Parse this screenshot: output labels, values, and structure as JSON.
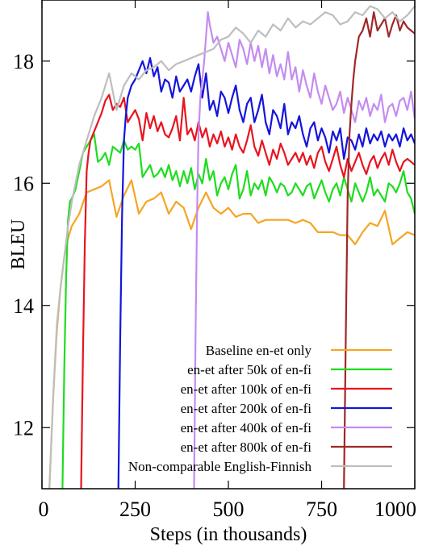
{
  "chart_data": {
    "type": "line",
    "xlabel": "Steps (in thousands)",
    "ylabel": "BLEU",
    "xlim": [
      0,
      1000
    ],
    "ylim": [
      11,
      19
    ],
    "xticks": [
      {
        "value": 0,
        "label": "0"
      },
      {
        "value": 250,
        "label": "250"
      },
      {
        "value": 500,
        "label": "500"
      },
      {
        "value": 750,
        "label": "750"
      },
      {
        "value": 1000,
        "label": "1000"
      }
    ],
    "yticks": [
      {
        "value": 12,
        "label": "12"
      },
      {
        "value": 14,
        "label": "14"
      },
      {
        "value": 16,
        "label": "16"
      },
      {
        "value": 18,
        "label": "18"
      }
    ],
    "legend_position": "bottom-right",
    "series": [
      {
        "name": "Baseline en-et only",
        "color": "#f5a623",
        "x": [
          20,
          30,
          40,
          50,
          60,
          70,
          80,
          100,
          120,
          140,
          160,
          180,
          200,
          220,
          240,
          260,
          280,
          300,
          320,
          340,
          360,
          380,
          400,
          420,
          440,
          460,
          480,
          500,
          520,
          540,
          560,
          580,
          600,
          620,
          640,
          660,
          680,
          700,
          720,
          740,
          760,
          780,
          800,
          820,
          840,
          860,
          880,
          900,
          920,
          940,
          960,
          980,
          1000
        ],
        "y": [
          11.0,
          12.5,
          13.6,
          14.3,
          14.8,
          15.1,
          15.3,
          15.5,
          15.85,
          15.9,
          15.95,
          16.05,
          15.45,
          15.8,
          16.05,
          15.5,
          15.7,
          15.75,
          15.85,
          15.5,
          15.7,
          15.6,
          15.25,
          15.6,
          15.85,
          15.6,
          15.5,
          15.6,
          15.45,
          15.5,
          15.5,
          15.35,
          15.4,
          15.4,
          15.4,
          15.4,
          15.35,
          15.4,
          15.35,
          15.2,
          15.2,
          15.2,
          15.15,
          15.15,
          15.0,
          15.2,
          15.35,
          15.3,
          15.55,
          15.0,
          15.1,
          15.2,
          15.15
        ]
      },
      {
        "name": "en-et after 50k of en-fi",
        "color": "#1fdc1f",
        "x": [
          55,
          60,
          65,
          70,
          75,
          80,
          90,
          100,
          110,
          120,
          130,
          140,
          150,
          160,
          170,
          180,
          190,
          200,
          210,
          220,
          230,
          240,
          250,
          260,
          270,
          280,
          290,
          300,
          310,
          320,
          330,
          340,
          350,
          360,
          370,
          380,
          390,
          400,
          410,
          420,
          430,
          440,
          450,
          460,
          470,
          480,
          490,
          500,
          510,
          520,
          530,
          540,
          550,
          560,
          570,
          580,
          590,
          600,
          610,
          620,
          630,
          640,
          650,
          660,
          670,
          680,
          690,
          700,
          710,
          720,
          730,
          740,
          750,
          760,
          770,
          780,
          790,
          800,
          810,
          820,
          830,
          840,
          850,
          860,
          870,
          880,
          890,
          900,
          910,
          920,
          930,
          940,
          950,
          960,
          970,
          980,
          990,
          1000
        ],
        "y": [
          11.0,
          13.0,
          14.5,
          15.4,
          15.7,
          15.75,
          15.9,
          16.2,
          16.5,
          16.6,
          16.7,
          16.8,
          16.35,
          16.4,
          16.5,
          16.3,
          16.6,
          16.55,
          16.5,
          16.7,
          16.55,
          16.6,
          16.55,
          16.65,
          16.1,
          16.2,
          16.3,
          16.1,
          16.15,
          16.25,
          16.1,
          16.3,
          16.05,
          16.2,
          15.95,
          16.2,
          16.0,
          16.25,
          15.9,
          16.15,
          16.0,
          16.4,
          16.05,
          16.2,
          15.8,
          16.0,
          16.1,
          15.9,
          16.15,
          16.3,
          15.75,
          15.9,
          16.2,
          15.8,
          16.0,
          15.9,
          16.05,
          15.8,
          16.1,
          16.0,
          15.85,
          16.0,
          15.95,
          15.8,
          15.85,
          16.0,
          15.9,
          15.8,
          15.95,
          16.0,
          15.75,
          15.9,
          16.05,
          15.85,
          15.7,
          15.9,
          16.0,
          15.8,
          16.1,
          15.9,
          15.7,
          16.0,
          15.85,
          15.7,
          15.85,
          16.1,
          15.8,
          15.9,
          15.8,
          15.7,
          16.0,
          15.95,
          15.85,
          16.0,
          16.2,
          15.85,
          15.75,
          15.5
        ]
      },
      {
        "name": "en-et after 100k of en-fi",
        "color": "#e8141e",
        "x": [
          105,
          110,
          115,
          120,
          125,
          130,
          140,
          150,
          160,
          170,
          180,
          190,
          200,
          210,
          220,
          230,
          240,
          250,
          260,
          270,
          280,
          290,
          300,
          310,
          320,
          330,
          340,
          350,
          360,
          370,
          380,
          390,
          400,
          410,
          420,
          430,
          440,
          450,
          460,
          470,
          480,
          490,
          500,
          510,
          520,
          530,
          540,
          550,
          560,
          570,
          580,
          590,
          600,
          610,
          620,
          630,
          640,
          650,
          660,
          670,
          680,
          690,
          700,
          710,
          720,
          730,
          740,
          750,
          760,
          770,
          780,
          790,
          800,
          810,
          820,
          830,
          840,
          850,
          860,
          870,
          880,
          890,
          900,
          910,
          920,
          930,
          940,
          950,
          960,
          970,
          980,
          990,
          1000
        ],
        "y": [
          11.0,
          13.2,
          15.0,
          16.2,
          16.5,
          16.7,
          16.85,
          17.0,
          17.15,
          17.35,
          17.45,
          17.2,
          17.3,
          17.25,
          17.4,
          17.0,
          17.1,
          17.2,
          17.05,
          16.7,
          17.15,
          16.9,
          17.1,
          16.85,
          17.0,
          16.8,
          16.75,
          16.9,
          17.1,
          16.7,
          17.4,
          16.8,
          16.9,
          16.7,
          17.0,
          16.75,
          16.9,
          16.6,
          16.8,
          16.65,
          16.85,
          16.6,
          16.75,
          16.55,
          16.8,
          16.6,
          16.5,
          16.7,
          16.95,
          16.6,
          16.45,
          16.7,
          16.5,
          16.3,
          16.55,
          16.4,
          16.65,
          16.5,
          16.3,
          16.4,
          16.5,
          16.35,
          16.5,
          16.3,
          16.45,
          16.25,
          16.5,
          16.6,
          16.35,
          16.2,
          16.4,
          16.6,
          16.3,
          16.1,
          16.4,
          16.2,
          16.35,
          16.5,
          16.3,
          16.15,
          16.35,
          16.45,
          16.25,
          16.4,
          16.5,
          16.3,
          16.55,
          16.35,
          16.2,
          16.35,
          16.4,
          16.35,
          16.3
        ]
      },
      {
        "name": "en-et after 200k of en-fi",
        "color": "#1414dc",
        "x": [
          205,
          210,
          215,
          220,
          225,
          230,
          240,
          250,
          260,
          270,
          280,
          290,
          300,
          310,
          320,
          330,
          340,
          350,
          360,
          370,
          380,
          390,
          400,
          410,
          420,
          430,
          440,
          450,
          460,
          470,
          480,
          490,
          500,
          510,
          520,
          530,
          540,
          550,
          560,
          570,
          580,
          590,
          600,
          610,
          620,
          630,
          640,
          650,
          660,
          670,
          680,
          690,
          700,
          710,
          720,
          730,
          740,
          750,
          760,
          770,
          780,
          790,
          800,
          810,
          820,
          830,
          840,
          850,
          860,
          870,
          880,
          890,
          900,
          910,
          920,
          930,
          940,
          950,
          960,
          970,
          980,
          990,
          1000
        ],
        "y": [
          11.0,
          13.5,
          15.5,
          16.7,
          17.1,
          17.4,
          17.6,
          17.7,
          17.85,
          18.0,
          17.8,
          18.05,
          17.75,
          17.9,
          17.5,
          17.7,
          17.65,
          17.4,
          17.75,
          17.5,
          17.6,
          17.7,
          17.5,
          17.75,
          17.95,
          17.4,
          17.8,
          17.2,
          17.35,
          17.1,
          17.5,
          17.4,
          17.15,
          17.4,
          17.6,
          17.2,
          17.0,
          17.3,
          17.4,
          17.0,
          17.2,
          17.45,
          17.0,
          16.8,
          17.2,
          17.1,
          16.9,
          17.3,
          16.8,
          17.0,
          16.9,
          17.1,
          16.8,
          16.6,
          16.9,
          17.0,
          16.7,
          16.9,
          16.75,
          16.5,
          16.85,
          16.7,
          16.9,
          16.4,
          16.75,
          16.7,
          16.55,
          16.8,
          16.6,
          16.9,
          16.65,
          16.8,
          16.7,
          16.85,
          16.6,
          16.8,
          16.7,
          16.8,
          16.6,
          16.9,
          16.7,
          16.8,
          16.65
        ]
      },
      {
        "name": "en-et after 400k of en-fi",
        "color": "#c48cf0",
        "x": [
          408,
          412,
          416,
          420,
          425,
          430,
          435,
          440,
          445,
          450,
          460,
          470,
          480,
          490,
          500,
          510,
          520,
          530,
          540,
          550,
          560,
          570,
          580,
          590,
          600,
          610,
          620,
          630,
          640,
          650,
          660,
          670,
          680,
          690,
          700,
          710,
          720,
          730,
          740,
          750,
          760,
          770,
          780,
          790,
          800,
          810,
          820,
          830,
          840,
          850,
          860,
          870,
          880,
          890,
          900,
          910,
          920,
          930,
          940,
          950,
          960,
          970,
          980,
          990,
          1000
        ],
        "y": [
          11.0,
          13.5,
          15.5,
          16.8,
          17.4,
          17.7,
          18.0,
          18.4,
          18.8,
          18.6,
          18.3,
          18.4,
          18.2,
          18.0,
          18.3,
          18.1,
          17.9,
          18.35,
          18.2,
          17.95,
          18.3,
          18.0,
          18.25,
          17.9,
          18.2,
          17.8,
          18.1,
          17.75,
          17.95,
          17.7,
          18.15,
          17.7,
          17.9,
          17.5,
          17.85,
          17.6,
          17.4,
          17.8,
          17.5,
          17.3,
          17.6,
          17.4,
          17.2,
          17.3,
          17.5,
          17.15,
          17.4,
          17.2,
          17.0,
          17.35,
          17.2,
          17.4,
          17.1,
          17.3,
          17.2,
          17.45,
          17.0,
          17.25,
          17.3,
          17.1,
          17.35,
          17.4,
          17.2,
          17.5,
          17.05
        ]
      },
      {
        "name": "en-et after 800k of en-fi",
        "color": "#a02828",
        "x": [
          810,
          815,
          820,
          825,
          830,
          835,
          840,
          850,
          860,
          870,
          880,
          890,
          900,
          910,
          920,
          930,
          940,
          950,
          960,
          970,
          980,
          990,
          1000
        ],
        "y": [
          11.0,
          13.5,
          15.8,
          16.8,
          17.3,
          17.7,
          18.0,
          18.4,
          18.5,
          18.7,
          18.4,
          18.8,
          18.5,
          18.6,
          18.7,
          18.4,
          18.6,
          18.75,
          18.5,
          18.65,
          18.55,
          18.5,
          18.45
        ]
      },
      {
        "name": "Non-comparable English-Finnish",
        "color": "#bebebe",
        "x": [
          20,
          30,
          40,
          50,
          60,
          70,
          80,
          100,
          120,
          140,
          160,
          180,
          200,
          220,
          240,
          260,
          280,
          300,
          320,
          340,
          360,
          380,
          400,
          420,
          440,
          460,
          480,
          500,
          520,
          540,
          560,
          580,
          600,
          620,
          640,
          660,
          680,
          700,
          720,
          740,
          760,
          780,
          800,
          820,
          840,
          860,
          880,
          900,
          920,
          940,
          960,
          980,
          1000
        ],
        "y": [
          11.0,
          12.5,
          13.7,
          14.3,
          14.8,
          15.3,
          15.7,
          16.3,
          16.7,
          17.1,
          17.4,
          17.8,
          17.2,
          17.6,
          17.8,
          17.7,
          17.85,
          17.9,
          18.0,
          17.85,
          17.95,
          18.0,
          18.05,
          18.1,
          18.15,
          18.2,
          18.35,
          18.4,
          18.55,
          18.45,
          18.3,
          18.5,
          18.4,
          18.6,
          18.5,
          18.7,
          18.55,
          18.65,
          18.6,
          18.7,
          18.8,
          18.75,
          18.6,
          18.65,
          18.8,
          18.75,
          18.9,
          18.85,
          18.7,
          18.8,
          18.65,
          18.75,
          18.9
        ]
      }
    ]
  }
}
